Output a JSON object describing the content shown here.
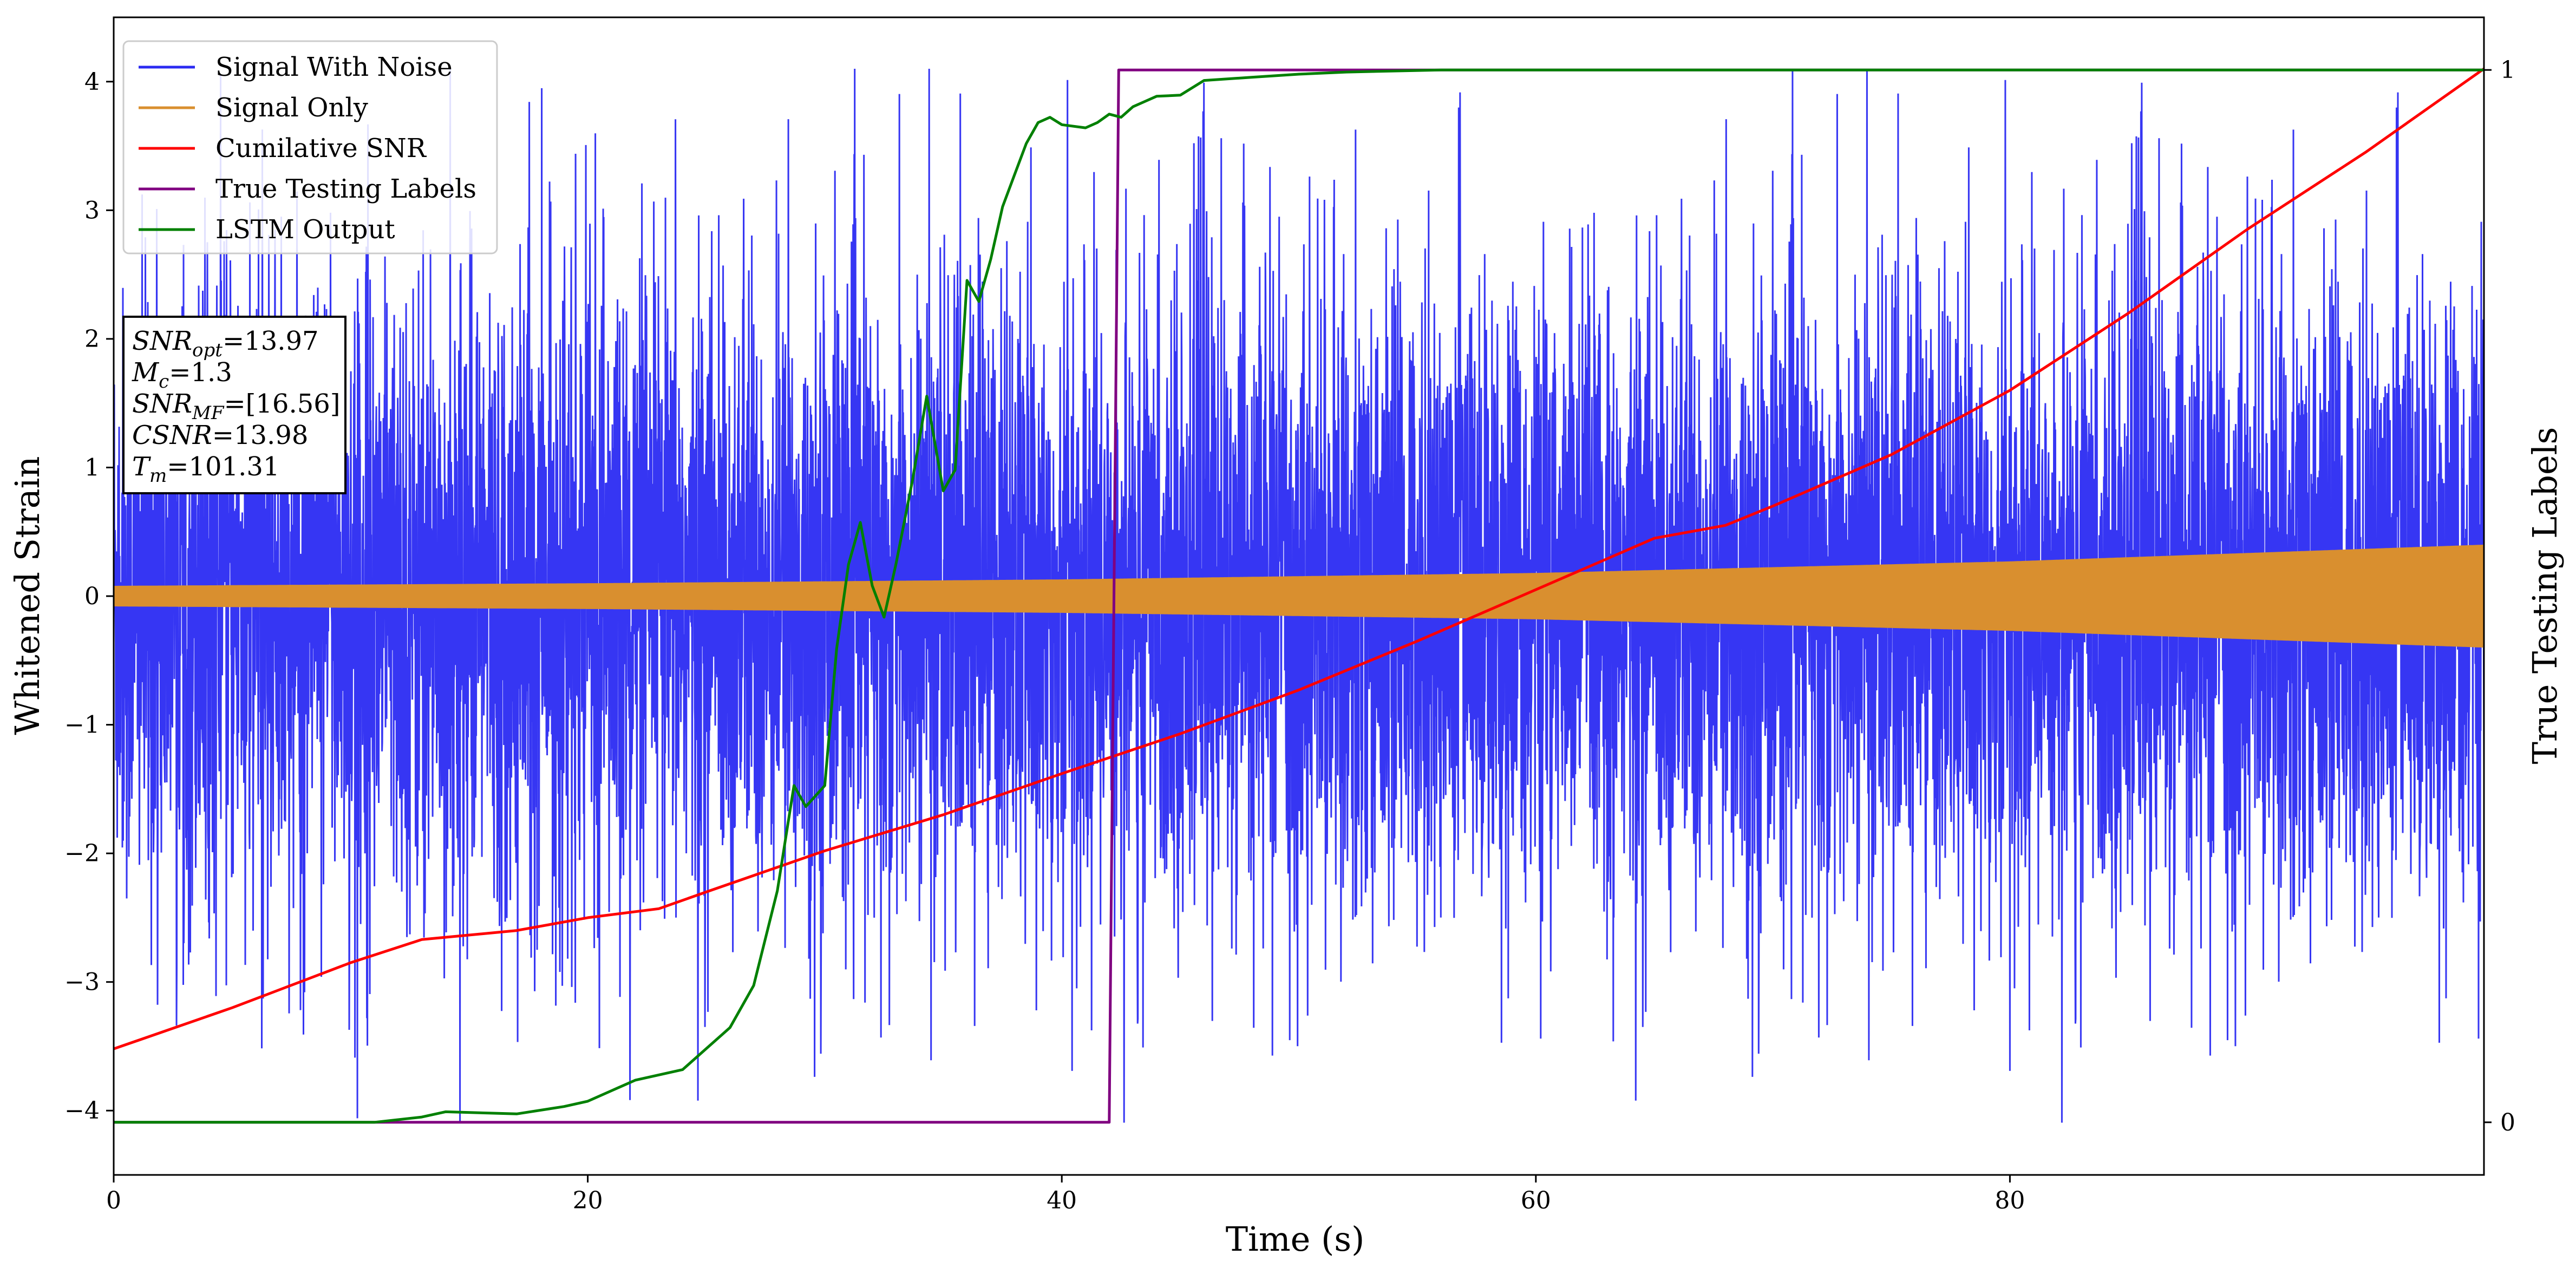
{
  "chart_data": {
    "type": "line",
    "xlabel": "Time (s)",
    "ylabel_left": "Whitened Strain",
    "ylabel_right": "True Testing Labels",
    "xlim": [
      0,
      100
    ],
    "ylim_left": [
      -4.5,
      4.5
    ],
    "ylim_right": [
      -0.05,
      1.05
    ],
    "x_ticks": [
      "0",
      "20",
      "40",
      "60",
      "80"
    ],
    "x_tick_values": [
      0,
      20,
      40,
      60,
      80
    ],
    "y_ticks_left": [
      "−4",
      "−3",
      "−2",
      "−1",
      "0",
      "1",
      "2",
      "3",
      "4"
    ],
    "y_tick_values_left": [
      -4,
      -3,
      -2,
      -1,
      0,
      1,
      2,
      3,
      4
    ],
    "y_ticks_right": [
      "0",
      "1"
    ],
    "y_tick_values_right": [
      0,
      1
    ],
    "grid": false,
    "legend_placement": "top-left",
    "legend": [
      "Signal With Noise",
      "Signal Only",
      "Cumilative SNR",
      "True Testing Labels",
      "LSTM Output"
    ],
    "annotation": {
      "snr_opt": {
        "base": "SNR",
        "sub": "opt",
        "value": "=13.97"
      },
      "mc": {
        "base": "M",
        "sub": "c",
        "value": "=1.3"
      },
      "snr_mf": {
        "base": "SNR",
        "sub": "MF",
        "value": "=[16.56]"
      },
      "csnr": {
        "base": "CSNR",
        "sub": "",
        "value": "=13.98"
      },
      "tm": {
        "base": "T",
        "sub": "m",
        "value": "=101.31"
      }
    },
    "series": [
      {
        "name": "Signal With Noise",
        "color": "#2b2bf2",
        "axis": "left",
        "style": "dense noise",
        "envelope": {
          "typical_upper": 2.6,
          "typical_lower": -2.6,
          "max": 4.1,
          "min": -4.1
        }
      },
      {
        "name": "Signal Only",
        "color": "#d98f2f",
        "axis": "left",
        "style": "oscillating band",
        "amplitude_points": [
          [
            0,
            0.08
          ],
          [
            20,
            0.1
          ],
          [
            40,
            0.13
          ],
          [
            60,
            0.18
          ],
          [
            80,
            0.27
          ],
          [
            100,
            0.4
          ]
        ]
      },
      {
        "name": "Cumilative SNR",
        "color": "#ff0000",
        "axis": "left",
        "x": [
          0,
          5,
          10,
          13,
          17,
          20,
          23,
          25,
          30,
          35,
          40,
          45,
          50,
          55,
          60,
          65,
          68,
          70,
          75,
          80,
          85,
          90,
          95,
          100
        ],
        "y": [
          -3.52,
          -3.2,
          -2.85,
          -2.67,
          -2.6,
          -2.5,
          -2.43,
          -2.3,
          -1.98,
          -1.7,
          -1.38,
          -1.07,
          -0.73,
          -0.35,
          0.05,
          0.45,
          0.55,
          0.7,
          1.1,
          1.6,
          2.2,
          2.85,
          3.45,
          4.1
        ]
      },
      {
        "name": "True Testing Labels",
        "color": "#800080",
        "axis": "right",
        "x": [
          0,
          42,
          42.4,
          100
        ],
        "y": [
          0,
          0,
          1,
          1
        ]
      },
      {
        "name": "LSTM Output",
        "color": "#008000",
        "axis": "right",
        "x": [
          0,
          11,
          13,
          14,
          17,
          19,
          20,
          21,
          22,
          24,
          25,
          26,
          27,
          28,
          28.7,
          29.2,
          30,
          30.5,
          31,
          31.5,
          32,
          32.5,
          33,
          33.7,
          34.3,
          35,
          35.5,
          36,
          36.5,
          37,
          37.5,
          38,
          38.5,
          39,
          39.5,
          40,
          41,
          41.5,
          42,
          42.5,
          43,
          43.5,
          44,
          45,
          46,
          48,
          50,
          52,
          56,
          60,
          100
        ],
        "y": [
          0,
          0,
          0.005,
          0.01,
          0.008,
          0.015,
          0.02,
          0.03,
          0.04,
          0.05,
          0.07,
          0.09,
          0.13,
          0.22,
          0.32,
          0.3,
          0.32,
          0.45,
          0.53,
          0.57,
          0.51,
          0.48,
          0.53,
          0.61,
          0.69,
          0.6,
          0.62,
          0.8,
          0.78,
          0.82,
          0.87,
          0.9,
          0.93,
          0.95,
          0.955,
          0.948,
          0.945,
          0.95,
          0.958,
          0.955,
          0.965,
          0.97,
          0.975,
          0.976,
          0.99,
          0.993,
          0.996,
          0.998,
          1,
          1,
          1
        ]
      }
    ]
  }
}
